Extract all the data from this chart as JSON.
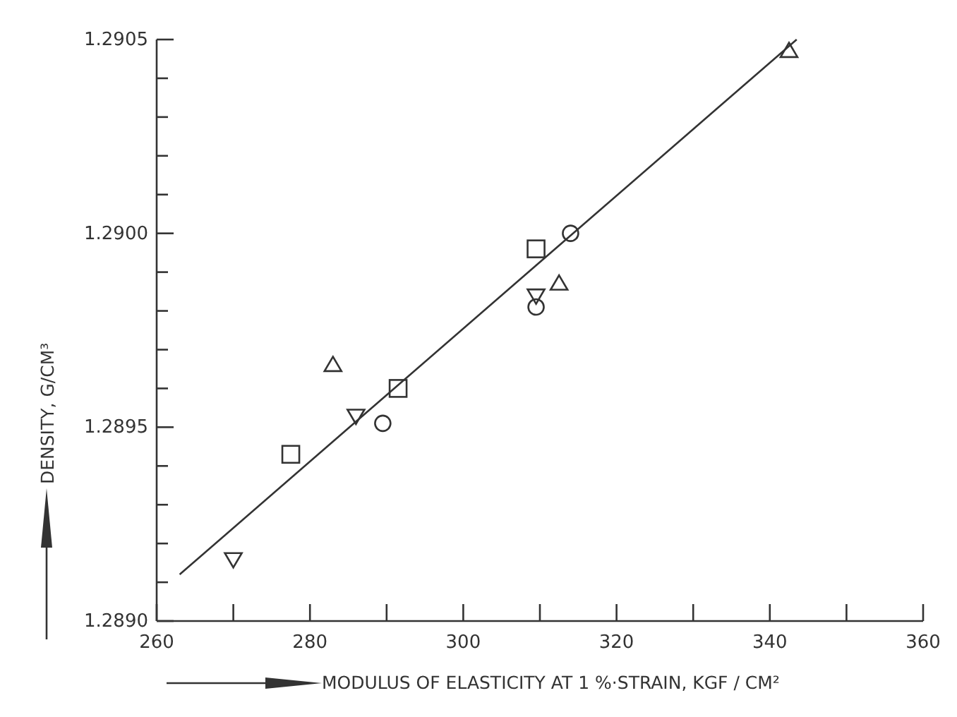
{
  "chart_data": {
    "type": "scatter",
    "xlabel": "MODULUS OF ELASTICITY AT 1 %·STRAIN, KGF / CM²",
    "ylabel": "DENSITY, G/CM³",
    "xlim": [
      260,
      360
    ],
    "xticks": [
      260,
      {
        "value": 270,
        "label": null
      },
      280,
      {
        "value": 290,
        "label": null
      },
      300,
      {
        "value": 310,
        "label": null
      },
      320,
      {
        "value": 330,
        "label": null
      },
      340,
      {
        "value": 350,
        "label": null
      },
      360
    ],
    "ylim": [
      1.289,
      1.2905
    ],
    "yticks": [
      {
        "value": 1.289,
        "label": "1.2890"
      },
      {
        "value": 1.2891,
        "label": null
      },
      {
        "value": 1.2892,
        "label": null
      },
      {
        "value": 1.2893,
        "label": null
      },
      {
        "value": 1.2894,
        "label": null
      },
      {
        "value": 1.2895,
        "label": "1.2895"
      },
      {
        "value": 1.2896,
        "label": null
      },
      {
        "value": 1.2897,
        "label": null
      },
      {
        "value": 1.2898,
        "label": null
      },
      {
        "value": 1.2899,
        "label": null
      },
      {
        "value": 1.29,
        "label": "1.2900"
      },
      {
        "value": 1.2901,
        "label": null
      },
      {
        "value": 1.2902,
        "label": null
      },
      {
        "value": 1.2903,
        "label": null
      },
      {
        "value": 1.2904,
        "label": null
      },
      {
        "value": 1.2905,
        "label": "1.2905"
      }
    ],
    "grid": false,
    "series": [
      {
        "marker": "circle",
        "color": "#333333",
        "x": [
          289.5,
          309.5,
          314
        ],
        "values": [
          1.28951,
          1.28981,
          1.29
        ]
      },
      {
        "marker": "square",
        "color": "#333333",
        "x": [
          277.5,
          291.5,
          309.5
        ],
        "values": [
          1.28943,
          1.2896,
          1.28996
        ]
      },
      {
        "marker": "triangle",
        "color": "#333333",
        "x": [
          283,
          312.5,
          342.5
        ],
        "values": [
          1.28966,
          1.28987,
          1.29047
        ]
      },
      {
        "marker": "triangle-down",
        "color": "#333333",
        "x": [
          270,
          286,
          309.5
        ],
        "values": [
          1.28916,
          1.28953,
          1.28984
        ]
      },
      {
        "type": "line",
        "marker": "none",
        "color": "#333333",
        "x": [
          263,
          343.5
        ],
        "values": [
          1.28912,
          1.2905
        ]
      }
    ]
  }
}
